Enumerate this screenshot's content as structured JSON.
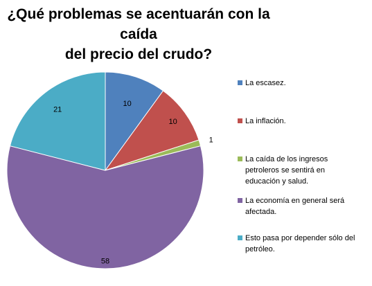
{
  "chart_data": {
    "type": "pie",
    "title_lines": [
      "¿Qué problemas se acentuarán con la caída",
      "del precio del crudo?"
    ],
    "categories": [
      "La escasez.",
      "La inflación.",
      "La caída de los ingresos petroleros se sentirá en educación y salud.",
      "La economía en general será afectada.",
      "Esto pasa por depender sólo del petróleo."
    ],
    "values": [
      10,
      10,
      1,
      58,
      21
    ],
    "data_labels": [
      "10",
      "10",
      "1",
      "58",
      "21"
    ],
    "colors": [
      "#4F81BD",
      "#C0504D",
      "#9BBB59",
      "#8064A2",
      "#4BACC6"
    ],
    "legend_position": "right",
    "legend_lines": [
      [
        "La escasez."
      ],
      [
        "La inflación."
      ],
      [
        "La caída de los ingresos",
        "petroleros se sentirá en",
        "educación y salud."
      ],
      [
        "La economía en general será",
        "afectada."
      ],
      [
        "Esto pasa por depender sólo del",
        "petróleo."
      ]
    ]
  }
}
